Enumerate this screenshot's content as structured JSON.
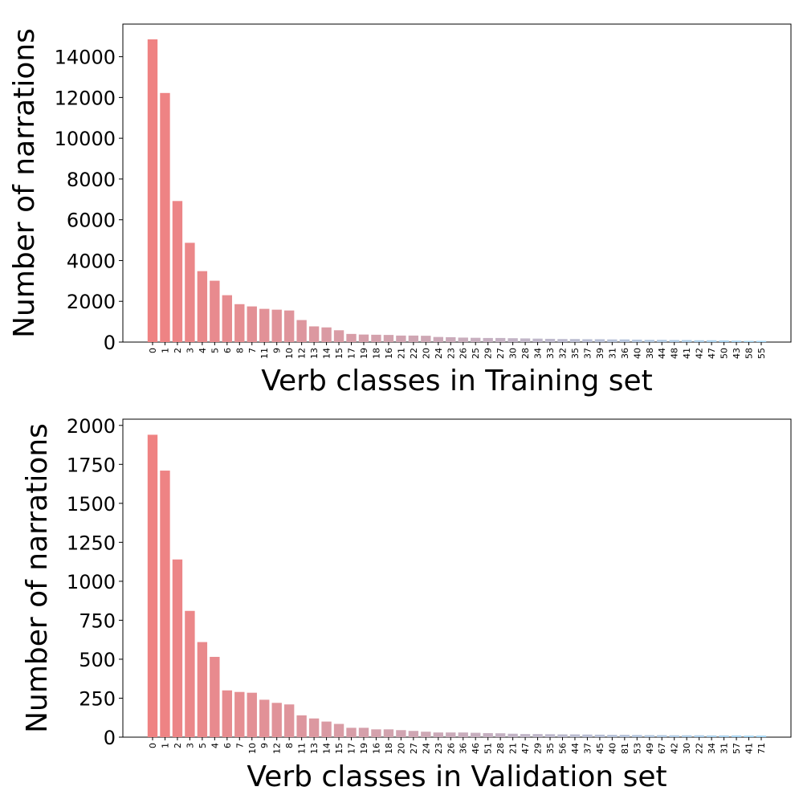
{
  "chart_data": [
    {
      "type": "bar",
      "xlabel": "Verb classes in Training set",
      "ylabel": "Number of narrations",
      "ylim": [
        0,
        15600
      ],
      "yticks": [
        0,
        2000,
        4000,
        6000,
        8000,
        10000,
        12000,
        14000
      ],
      "grid": false,
      "categories": [
        "0",
        "1",
        "2",
        "3",
        "4",
        "5",
        "6",
        "8",
        "7",
        "11",
        "9",
        "10",
        "12",
        "13",
        "14",
        "15",
        "17",
        "19",
        "18",
        "16",
        "21",
        "22",
        "20",
        "24",
        "23",
        "26",
        "25",
        "29",
        "27",
        "30",
        "28",
        "34",
        "33",
        "32",
        "35",
        "37",
        "39",
        "31",
        "36",
        "40",
        "38",
        "44",
        "48",
        "41",
        "42",
        "47",
        "50",
        "43",
        "58",
        "55"
      ],
      "values": [
        14850,
        12220,
        6920,
        4870,
        3480,
        3010,
        2300,
        1860,
        1750,
        1630,
        1590,
        1550,
        1080,
        770,
        720,
        580,
        400,
        370,
        360,
        350,
        320,
        320,
        310,
        250,
        240,
        220,
        210,
        200,
        200,
        190,
        180,
        170,
        160,
        150,
        150,
        140,
        140,
        130,
        130,
        120,
        110,
        110,
        100,
        100,
        90,
        90,
        80,
        70,
        60,
        60
      ],
      "colors": [
        "#ef8282",
        "#ee8384",
        "#ec8587",
        "#eb8789",
        "#e9898b",
        "#e88a8e",
        "#e68c90",
        "#e58e92",
        "#e39095",
        "#e29197",
        "#e09399",
        "#df959c",
        "#dd969e",
        "#dc98a0",
        "#da9aa3",
        "#d99ca5",
        "#d79da7",
        "#d59faa",
        "#d4a1ac",
        "#d2a3ae",
        "#d1a4b1",
        "#cfa6b3",
        "#cea8b5",
        "#cca9b8",
        "#cbabba",
        "#c9adbc",
        "#c8afbf",
        "#c6b0c1",
        "#c5b2c3",
        "#c3b4c6",
        "#c2b6c8",
        "#c0b7ca",
        "#beb9cd",
        "#bdbbcf",
        "#bbbdd1",
        "#babed4",
        "#b8c0d6",
        "#b7c2d8",
        "#b5c3db",
        "#b4c5dd",
        "#b2c7df",
        "#b1c9e2",
        "#afcae4",
        "#aecce6",
        "#accee9",
        "#abd0eb",
        "#a9d1ed",
        "#a8d3f0",
        "#a6d5f2",
        "#a5d6f4"
      ]
    },
    {
      "type": "bar",
      "xlabel": "Verb classes in Validation set",
      "ylabel": "Number of narrations",
      "ylim": [
        0,
        2040
      ],
      "yticks": [
        0,
        250,
        500,
        750,
        1000,
        1250,
        1500,
        1750,
        2000
      ],
      "grid": false,
      "categories": [
        "0",
        "1",
        "2",
        "3",
        "5",
        "4",
        "6",
        "7",
        "10",
        "9",
        "12",
        "8",
        "11",
        "13",
        "14",
        "15",
        "17",
        "19",
        "16",
        "18",
        "20",
        "27",
        "24",
        "23",
        "26",
        "36",
        "46",
        "51",
        "28",
        "21",
        "47",
        "29",
        "35",
        "56",
        "44",
        "37",
        "45",
        "40",
        "81",
        "53",
        "49",
        "67",
        "42",
        "30",
        "22",
        "34",
        "31",
        "57",
        "41",
        "71"
      ],
      "values": [
        1940,
        1710,
        1140,
        810,
        610,
        515,
        300,
        290,
        285,
        240,
        220,
        210,
        140,
        120,
        100,
        85,
        60,
        60,
        50,
        50,
        45,
        40,
        35,
        30,
        30,
        30,
        28,
        26,
        25,
        22,
        20,
        20,
        19,
        18,
        18,
        17,
        16,
        15,
        15,
        14,
        13,
        13,
        12,
        12,
        12,
        11,
        11,
        11,
        10,
        10
      ],
      "colors": [
        "#ef8282",
        "#ee8384",
        "#ec8587",
        "#eb8789",
        "#e9898b",
        "#e88a8e",
        "#e68c90",
        "#e58e92",
        "#e39095",
        "#e29197",
        "#e09399",
        "#df959c",
        "#dd969e",
        "#dc98a0",
        "#da9aa3",
        "#d99ca5",
        "#d79da7",
        "#d59faa",
        "#d4a1ac",
        "#d2a3ae",
        "#d1a4b1",
        "#cfa6b3",
        "#cea8b5",
        "#cca9b8",
        "#cbabba",
        "#c9adbc",
        "#c8afbf",
        "#c6b0c1",
        "#c5b2c3",
        "#c3b4c6",
        "#c2b6c8",
        "#c0b7ca",
        "#beb9cd",
        "#bdbbcf",
        "#bbbdd1",
        "#babed4",
        "#b8c0d6",
        "#b7c2d8",
        "#b5c3db",
        "#b4c5dd",
        "#b2c7df",
        "#b1c9e2",
        "#afcae4",
        "#aecce6",
        "#accee9",
        "#abd0eb",
        "#a9d1ed",
        "#a8d3f0",
        "#a6d5f2",
        "#a5d6f4"
      ]
    }
  ]
}
